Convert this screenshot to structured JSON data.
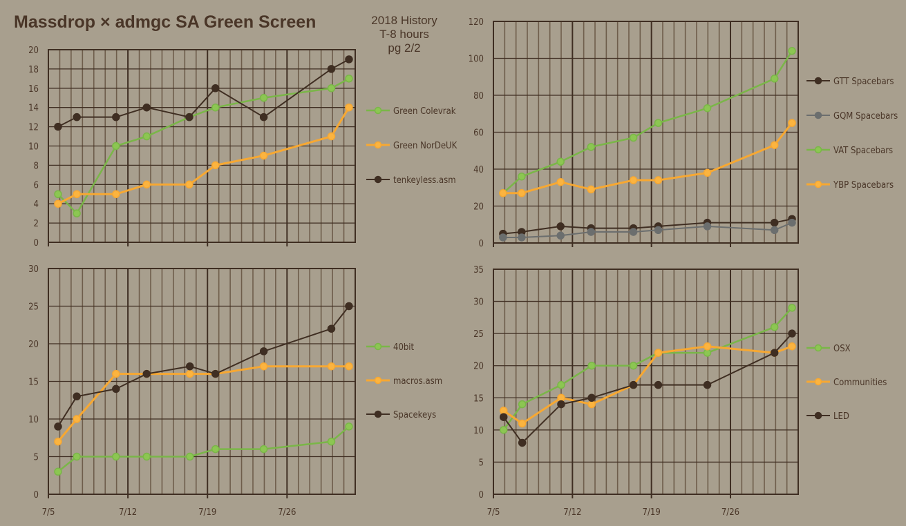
{
  "header": {
    "title": "Massdrop × admgc SA Green Screen",
    "subtitle_lines": [
      "2018 History",
      "T-8 hours",
      "pg 2/2"
    ]
  },
  "colors": {
    "background": "#a89f8e",
    "text": "#4a3628",
    "grid_major": "#3f2e22",
    "grid_minor": "#6e5d4b",
    "green": "#7ab648",
    "orange": "#f7a832",
    "dark": "#3f2e22",
    "gray": "#6b6e6e"
  },
  "chart_data": [
    {
      "id": "top-left",
      "type": "line",
      "title": "",
      "xlabel": "",
      "ylabel": "",
      "x_unit": "days since 7/5",
      "x_range": [
        0,
        27
      ],
      "x_tick_labels": [],
      "x_tick_days": [
        0,
        7,
        14,
        21
      ],
      "ylim": [
        0,
        20
      ],
      "y_ticks": [
        0,
        2,
        4,
        6,
        8,
        10,
        12,
        14,
        16,
        18,
        20
      ],
      "grid": true,
      "legend_position": "right",
      "x": [
        0.85,
        2.5,
        5.95,
        8.65,
        12.4,
        14.7,
        18.95,
        24.9,
        26.45
      ],
      "series": [
        {
          "name": "Green Colevrak",
          "color": "green",
          "values": [
            5,
            3,
            10,
            11,
            13,
            14,
            15,
            16,
            17
          ]
        },
        {
          "name": "Green NorDeUK",
          "color": "orange",
          "values": [
            4,
            5,
            5,
            6,
            6,
            8,
            9,
            11,
            14
          ]
        },
        {
          "name": "tenkeyless.asm",
          "color": "dark",
          "values": [
            12,
            13,
            13,
            14,
            13,
            16,
            13,
            18,
            19
          ]
        }
      ]
    },
    {
      "id": "top-right",
      "type": "line",
      "title": "",
      "xlabel": "",
      "ylabel": "",
      "x_unit": "days since 7/5",
      "x_range": [
        0,
        27
      ],
      "x_tick_labels": [],
      "x_tick_days": [
        0,
        7,
        14,
        21
      ],
      "ylim": [
        0,
        120
      ],
      "y_ticks": [
        0,
        20,
        40,
        60,
        80,
        100,
        120
      ],
      "grid": true,
      "legend_position": "right",
      "x": [
        0.85,
        2.5,
        5.95,
        8.65,
        12.4,
        14.6,
        18.95,
        24.9,
        26.45
      ],
      "series": [
        {
          "name": "GTT Spacebars",
          "color": "dark",
          "values": [
            5,
            6,
            9,
            8,
            8,
            9,
            11,
            11,
            13
          ]
        },
        {
          "name": "GQM Spacebars",
          "color": "gray",
          "values": [
            3,
            3,
            4,
            6,
            6,
            7,
            9,
            7,
            11
          ]
        },
        {
          "name": "VAT Spacebars",
          "color": "green",
          "values": [
            27,
            36,
            44,
            52,
            57,
            65,
            73,
            89,
            104
          ]
        },
        {
          "name": "YBP Spacebars",
          "color": "orange",
          "values": [
            27,
            27,
            33,
            29,
            34,
            34,
            38,
            53,
            65
          ]
        }
      ]
    },
    {
      "id": "bottom-left",
      "type": "line",
      "title": "",
      "xlabel": "",
      "ylabel": "",
      "x_unit": "days since 7/5",
      "x_range": [
        0,
        27
      ],
      "x_tick_labels": [
        "7/5",
        "7/12",
        "7/19",
        "7/26"
      ],
      "x_tick_days": [
        0,
        7,
        14,
        21
      ],
      "ylim": [
        0,
        30
      ],
      "y_ticks": [
        0,
        5,
        10,
        15,
        20,
        25,
        30
      ],
      "grid": true,
      "legend_position": "right",
      "x": [
        0.85,
        2.5,
        5.95,
        8.65,
        12.45,
        14.7,
        18.95,
        24.9,
        26.45
      ],
      "series": [
        {
          "name": "40bit",
          "color": "green",
          "values": [
            3,
            5,
            5,
            5,
            5,
            6,
            6,
            7,
            9
          ]
        },
        {
          "name": "macros.asm",
          "color": "orange",
          "values": [
            7,
            10,
            16,
            16,
            16,
            16,
            17,
            17,
            17
          ]
        },
        {
          "name": "Spacekeys",
          "color": "dark",
          "values": [
            9,
            13,
            14,
            16,
            17,
            16,
            19,
            22,
            25
          ]
        }
      ]
    },
    {
      "id": "bottom-right",
      "type": "line",
      "title": "",
      "xlabel": "",
      "ylabel": "",
      "x_unit": "days since 7/5",
      "x_range": [
        0,
        27
      ],
      "x_tick_labels": [
        "7/5",
        "7/12",
        "7/19",
        "7/26"
      ],
      "x_tick_days": [
        0,
        7,
        14,
        21
      ],
      "ylim": [
        0,
        35
      ],
      "y_ticks": [
        0,
        5,
        10,
        15,
        20,
        25,
        30,
        35
      ],
      "grid": true,
      "legend_position": "right",
      "x": [
        0.9,
        2.55,
        6.0,
        8.7,
        12.4,
        14.6,
        18.95,
        24.9,
        26.45
      ],
      "series": [
        {
          "name": "OSX",
          "color": "green",
          "values": [
            10,
            14,
            17,
            20,
            20,
            22,
            22,
            26,
            29
          ]
        },
        {
          "name": "Communities",
          "color": "orange",
          "values": [
            13,
            11,
            15,
            14,
            17,
            22,
            23,
            22,
            23
          ]
        },
        {
          "name": "LED",
          "color": "dark",
          "values": [
            12,
            8,
            14,
            15,
            17,
            17,
            17,
            22,
            25
          ]
        }
      ]
    }
  ]
}
